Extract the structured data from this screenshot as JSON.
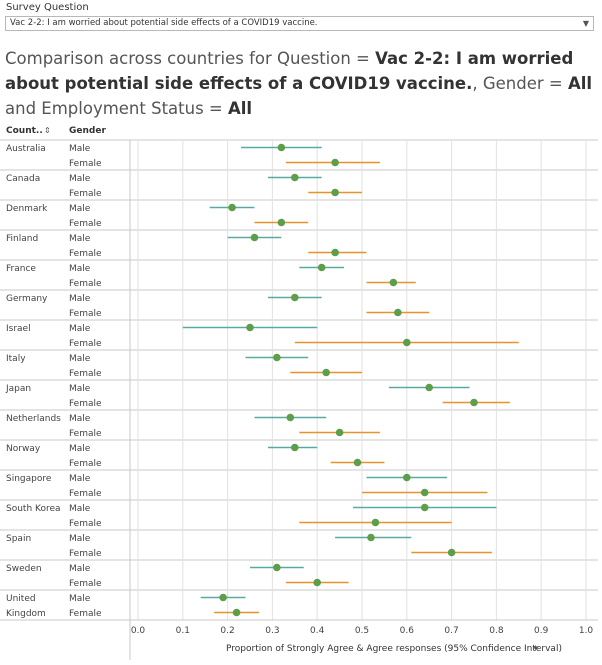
{
  "filter": {
    "label": "Survey Question",
    "selected": "Vac 2-2: I am worried about potential side effects of a COVID19 vaccine."
  },
  "title": {
    "part1": "Comparison across countries for Question = ",
    "question": "Vac 2-2: I am worried about potential side effects of a COVID19 vaccine.",
    "part2": ", Gender = ",
    "gender": "All",
    "part3": " and Employment Status = ",
    "employment": "All"
  },
  "headers": {
    "country": "Count..",
    "gender": "Gender"
  },
  "colors": {
    "male_line": "#5aa9a1",
    "female_line": "#e8932a",
    "point": "#5c9e4a",
    "grid": "#e2e2e2",
    "band": "#c9c9c9"
  },
  "chart_data": {
    "type": "scatter",
    "xlabel": "Proportion of Strongly Agree & Agree responses (95% Confidence Interval)",
    "xlim": [
      0,
      1
    ],
    "xticks": [
      "0.0",
      "0.1",
      "0.2",
      "0.3",
      "0.4",
      "0.5",
      "0.6",
      "0.7",
      "0.8",
      "0.9",
      "1.0"
    ],
    "rows": [
      {
        "country": "Australia",
        "gender": "Male",
        "value": 0.32,
        "low": 0.23,
        "high": 0.41
      },
      {
        "country": "Australia",
        "gender": "Female",
        "value": 0.44,
        "low": 0.33,
        "high": 0.54
      },
      {
        "country": "Canada",
        "gender": "Male",
        "value": 0.35,
        "low": 0.29,
        "high": 0.41
      },
      {
        "country": "Canada",
        "gender": "Female",
        "value": 0.44,
        "low": 0.38,
        "high": 0.5
      },
      {
        "country": "Denmark",
        "gender": "Male",
        "value": 0.21,
        "low": 0.16,
        "high": 0.26
      },
      {
        "country": "Denmark",
        "gender": "Female",
        "value": 0.32,
        "low": 0.26,
        "high": 0.38
      },
      {
        "country": "Finland",
        "gender": "Male",
        "value": 0.26,
        "low": 0.2,
        "high": 0.32
      },
      {
        "country": "Finland",
        "gender": "Female",
        "value": 0.44,
        "low": 0.38,
        "high": 0.51
      },
      {
        "country": "France",
        "gender": "Male",
        "value": 0.41,
        "low": 0.36,
        "high": 0.46
      },
      {
        "country": "France",
        "gender": "Female",
        "value": 0.57,
        "low": 0.51,
        "high": 0.62
      },
      {
        "country": "Germany",
        "gender": "Male",
        "value": 0.35,
        "low": 0.29,
        "high": 0.41
      },
      {
        "country": "Germany",
        "gender": "Female",
        "value": 0.58,
        "low": 0.51,
        "high": 0.65
      },
      {
        "country": "Israel",
        "gender": "Male",
        "value": 0.25,
        "low": 0.1,
        "high": 0.4
      },
      {
        "country": "Israel",
        "gender": "Female",
        "value": 0.6,
        "low": 0.35,
        "high": 0.85
      },
      {
        "country": "Italy",
        "gender": "Male",
        "value": 0.31,
        "low": 0.24,
        "high": 0.38
      },
      {
        "country": "Italy",
        "gender": "Female",
        "value": 0.42,
        "low": 0.34,
        "high": 0.5
      },
      {
        "country": "Japan",
        "gender": "Male",
        "value": 0.65,
        "low": 0.56,
        "high": 0.74
      },
      {
        "country": "Japan",
        "gender": "Female",
        "value": 0.75,
        "low": 0.68,
        "high": 0.83
      },
      {
        "country": "Netherlands",
        "gender": "Male",
        "value": 0.34,
        "low": 0.26,
        "high": 0.42
      },
      {
        "country": "Netherlands",
        "gender": "Female",
        "value": 0.45,
        "low": 0.36,
        "high": 0.54
      },
      {
        "country": "Norway",
        "gender": "Male",
        "value": 0.35,
        "low": 0.29,
        "high": 0.4
      },
      {
        "country": "Norway",
        "gender": "Female",
        "value": 0.49,
        "low": 0.43,
        "high": 0.55
      },
      {
        "country": "Singapore",
        "gender": "Male",
        "value": 0.6,
        "low": 0.51,
        "high": 0.69
      },
      {
        "country": "Singapore",
        "gender": "Female",
        "value": 0.64,
        "low": 0.5,
        "high": 0.78
      },
      {
        "country": "South Korea",
        "gender": "Male",
        "value": 0.64,
        "low": 0.48,
        "high": 0.8
      },
      {
        "country": "South Korea",
        "gender": "Female",
        "value": 0.53,
        "low": 0.36,
        "high": 0.7
      },
      {
        "country": "Spain",
        "gender": "Male",
        "value": 0.52,
        "low": 0.44,
        "high": 0.61
      },
      {
        "country": "Spain",
        "gender": "Female",
        "value": 0.7,
        "low": 0.61,
        "high": 0.79
      },
      {
        "country": "Sweden",
        "gender": "Male",
        "value": 0.31,
        "low": 0.25,
        "high": 0.37
      },
      {
        "country": "Sweden",
        "gender": "Female",
        "value": 0.4,
        "low": 0.33,
        "high": 0.47
      },
      {
        "country": "United Kingdom",
        "gender": "Male",
        "value": 0.19,
        "low": 0.14,
        "high": 0.24
      },
      {
        "country": "United Kingdom",
        "gender": "Female",
        "value": 0.22,
        "low": 0.17,
        "high": 0.27
      }
    ]
  }
}
